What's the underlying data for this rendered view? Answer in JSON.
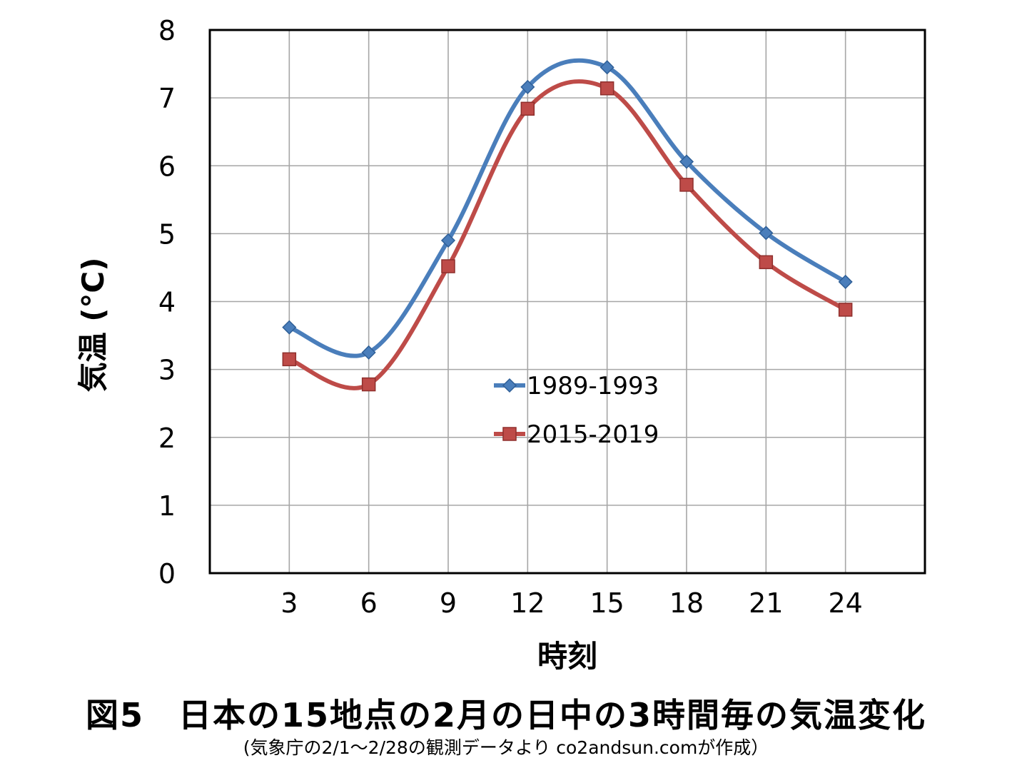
{
  "chart_data": {
    "type": "line",
    "title": "図5　日本の15地点の2月の日中の3時間毎の気温変化",
    "subtitle": "(気象庁の2/1〜2/28の観測データより co2andsun.comが作成）",
    "xlabel": "時刻",
    "ylabel": "気温 (°C)",
    "x": [
      3,
      6,
      9,
      12,
      15,
      18,
      21,
      24
    ],
    "x_tick_labels": [
      "3",
      "6",
      "9",
      "12",
      "15",
      "18",
      "21",
      "24"
    ],
    "y_tick_labels": [
      "0",
      "1",
      "2",
      "3",
      "4",
      "5",
      "6",
      "7",
      "8"
    ],
    "xlim": [
      0,
      27
    ],
    "ylim": [
      0,
      8
    ],
    "grid": true,
    "legend_position": "center",
    "series": [
      {
        "name": "1989-1993",
        "color": "#4a7ebb",
        "marker": "diamond",
        "values": [
          3.62,
          3.25,
          4.9,
          7.16,
          7.45,
          6.06,
          5.01,
          4.29
        ]
      },
      {
        "name": "2015-2019",
        "color": "#be4b48",
        "marker": "square",
        "values": [
          3.15,
          2.78,
          4.52,
          6.84,
          7.14,
          5.72,
          4.58,
          3.88
        ]
      }
    ]
  }
}
